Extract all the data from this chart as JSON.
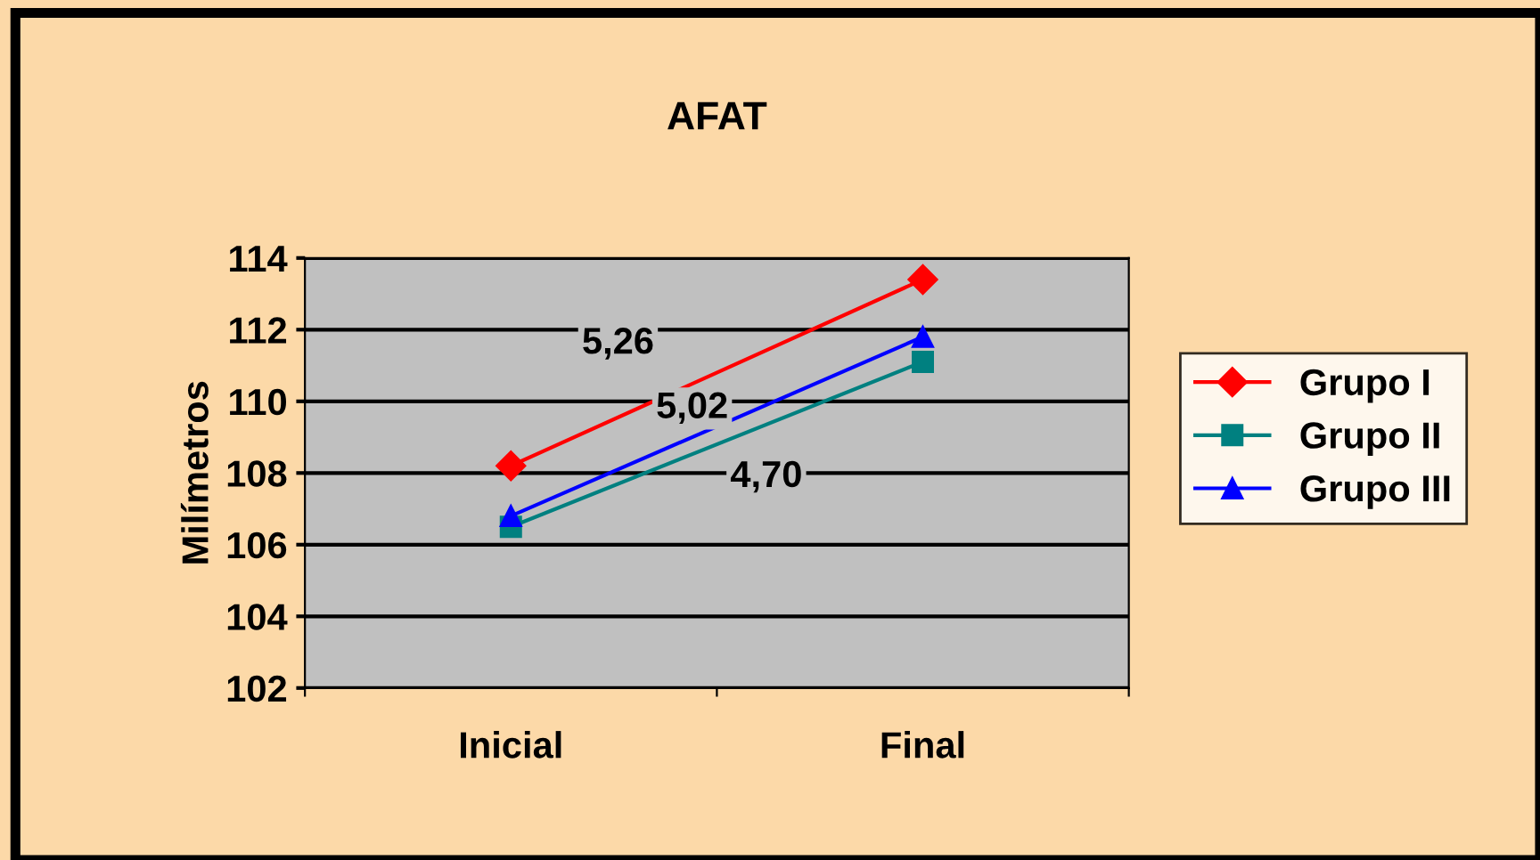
{
  "chart_data": {
    "type": "line",
    "title": "AFAT",
    "ylabel": "Milímetros",
    "categories": [
      "Inicial",
      "Final"
    ],
    "series": [
      {
        "name": "Grupo I",
        "color": "#ff0000",
        "values": [
          108.2,
          113.4
        ],
        "marker": "diamond"
      },
      {
        "name": "Grupo II",
        "color": "#008080",
        "values": [
          106.5,
          111.1
        ],
        "marker": "square"
      },
      {
        "name": "Grupo III",
        "color": "#0000ff",
        "values": [
          106.8,
          111.8
        ],
        "marker": "triangle"
      }
    ],
    "annotations": [
      "5,26",
      "5,02",
      "4,70"
    ],
    "ylim": [
      102,
      114
    ],
    "yticks": [
      102,
      104,
      106,
      108,
      110,
      112,
      114
    ],
    "grid": "y",
    "legend": "right"
  }
}
